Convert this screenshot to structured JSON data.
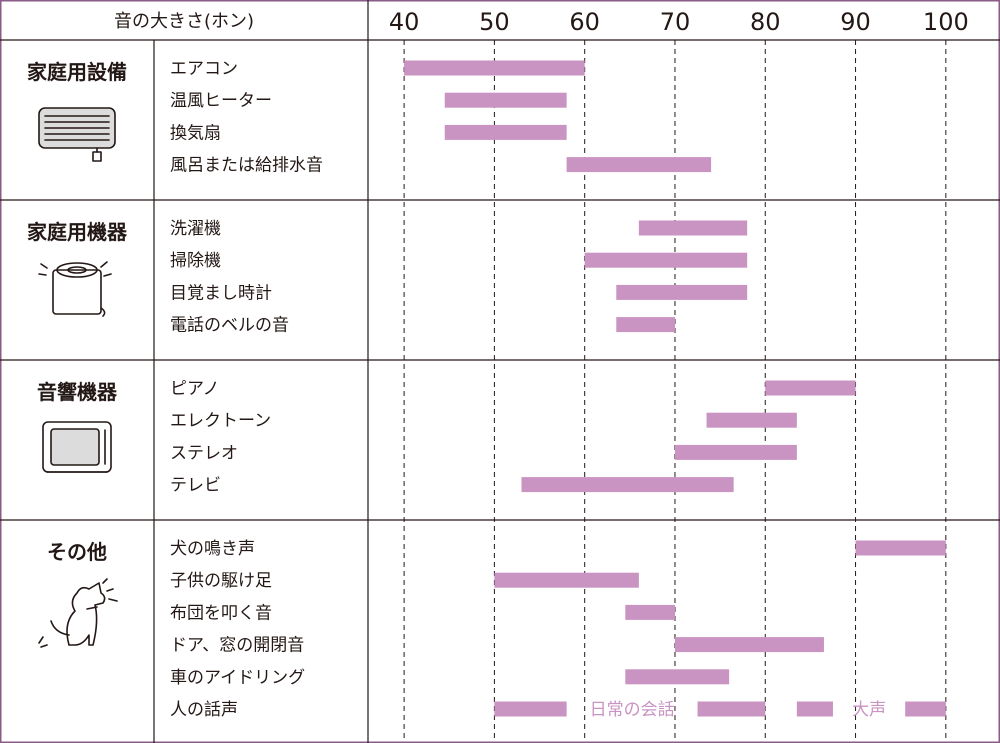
{
  "header": {
    "label": "音の大きさ(ホン)"
  },
  "chart_data": {
    "type": "bar",
    "orientation": "horizontal-range",
    "xlim": [
      36,
      106
    ],
    "x_ticks": [
      40,
      50,
      60,
      70,
      80,
      90,
      100
    ],
    "grid": "vertical dashed",
    "groups": [
      {
        "name": "家庭用設備",
        "icon": "air-conditioner-icon",
        "items": [
          {
            "label": "エアコン",
            "range": [
              40,
              60
            ]
          },
          {
            "label": "温風ヒーター",
            "range": [
              44.5,
              58
            ]
          },
          {
            "label": "換気扇",
            "range": [
              44.5,
              58
            ]
          },
          {
            "label": "風呂または給排水音",
            "range": [
              58,
              74
            ]
          }
        ]
      },
      {
        "name": "家庭用機器",
        "icon": "washing-machine-icon",
        "items": [
          {
            "label": "洗濯機",
            "range": [
              66,
              78
            ]
          },
          {
            "label": "掃除機",
            "range": [
              60,
              78
            ]
          },
          {
            "label": "目覚まし時計",
            "range": [
              63.5,
              78
            ]
          },
          {
            "label": "電話のベルの音",
            "range": [
              63.5,
              70
            ]
          }
        ]
      },
      {
        "name": "音響機器",
        "icon": "television-icon",
        "items": [
          {
            "label": "ピアノ",
            "range": [
              80,
              90
            ]
          },
          {
            "label": "エレクトーン",
            "range": [
              73.5,
              83.5
            ]
          },
          {
            "label": "ステレオ",
            "range": [
              70,
              83.5
            ]
          },
          {
            "label": "テレビ",
            "range": [
              53,
              76.5
            ]
          }
        ]
      },
      {
        "name": "その他",
        "icon": "dog-icon",
        "items": [
          {
            "label": "犬の鳴き声",
            "range": [
              90,
              100
            ]
          },
          {
            "label": "子供の駆け足",
            "range": [
              50,
              66
            ]
          },
          {
            "label": "布団を叩く音",
            "range": [
              64.5,
              70
            ]
          },
          {
            "label": "ドア、窓の開閉音",
            "range": [
              70,
              86.5
            ]
          },
          {
            "label": "車のアイドリング",
            "range": [
              64.5,
              76
            ]
          },
          {
            "label": "人の話声",
            "range": [
              50,
              100
            ],
            "segments": [
              {
                "range": [
                  50,
                  58
                ]
              },
              {
                "text": "日常の会話"
              },
              {
                "range": [
                  72.5,
                  80
                ]
              },
              {
                "range": [
                  83.5,
                  87.5
                ]
              },
              {
                "text": "大声"
              },
              {
                "range": [
                  95.5,
                  100
                ]
              }
            ]
          }
        ]
      }
    ],
    "colors": {
      "bar": "#c993c2",
      "frame": "#8a5b86",
      "text": "#231815"
    }
  }
}
